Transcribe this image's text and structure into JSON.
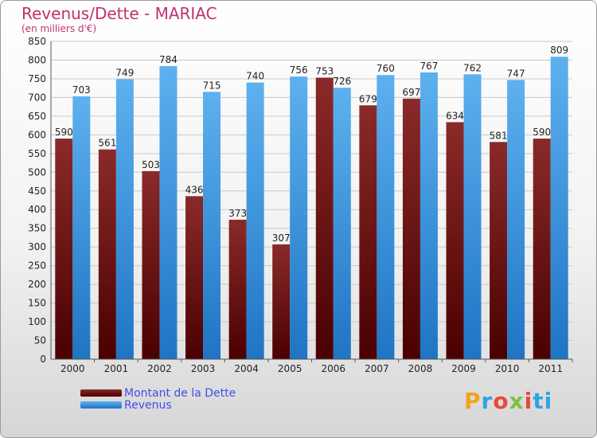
{
  "chart_data": {
    "type": "bar",
    "title": "Revenus/Dette - MARIAC",
    "subtitle": "(en milliers d'€)",
    "categories": [
      "2000",
      "2001",
      "2002",
      "2003",
      "2004",
      "2005",
      "2006",
      "2007",
      "2008",
      "2009",
      "2010",
      "2011"
    ],
    "series": [
      {
        "name": "Montant de la Dette",
        "color": "#7a0f0f",
        "values": [
          590,
          561,
          503,
          436,
          373,
          307,
          753,
          679,
          697,
          634,
          581,
          590
        ]
      },
      {
        "name": "Revenus",
        "color": "#3a97dc",
        "values": [
          703,
          749,
          784,
          715,
          740,
          756,
          726,
          760,
          767,
          762,
          747,
          809
        ]
      }
    ],
    "ylim": [
      0,
      850
    ],
    "yticks": [
      0,
      50,
      100,
      150,
      200,
      250,
      300,
      350,
      400,
      450,
      500,
      550,
      600,
      650,
      700,
      750,
      800,
      850
    ],
    "grid": true,
    "legend_position": "bottom-left"
  },
  "logo": {
    "letters": [
      "P",
      "r",
      "o",
      "x",
      "i",
      "ti"
    ]
  }
}
